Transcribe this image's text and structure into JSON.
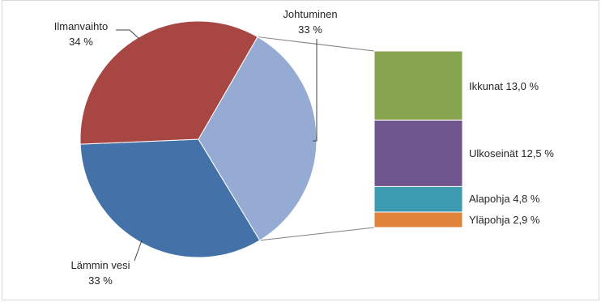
{
  "chart_data": {
    "type": "bar-of-pie",
    "pie": {
      "slices": [
        {
          "name": "Johtuminen",
          "value": 33,
          "label": "33 %",
          "color": "#95abd3"
        },
        {
          "name": "Lämmin vesi",
          "value": 33,
          "label": "33 %",
          "color": "#4472a8"
        },
        {
          "name": "Ilmanvaihto",
          "value": 34,
          "label": "34 %",
          "color": "#a84644"
        }
      ]
    },
    "bar": {
      "breakdown_of": "Johtuminen",
      "segments": [
        {
          "name": "Ikkunat",
          "value": 13.0,
          "label": "Ikkunat 13,0 %",
          "color": "#86a54e"
        },
        {
          "name": "Ulkoseinät",
          "value": 12.5,
          "label": "Ulkoseinät 12,5 %",
          "color": "#6f568f"
        },
        {
          "name": "Alapohja",
          "value": 4.8,
          "label": "Alapohja 4,8 %",
          "color": "#3c9bb0"
        },
        {
          "name": "Yläpohja",
          "value": 2.9,
          "label": "Yläpohja 2,9 %",
          "color": "#e0823a"
        }
      ]
    },
    "legend": "none",
    "grid": false
  }
}
